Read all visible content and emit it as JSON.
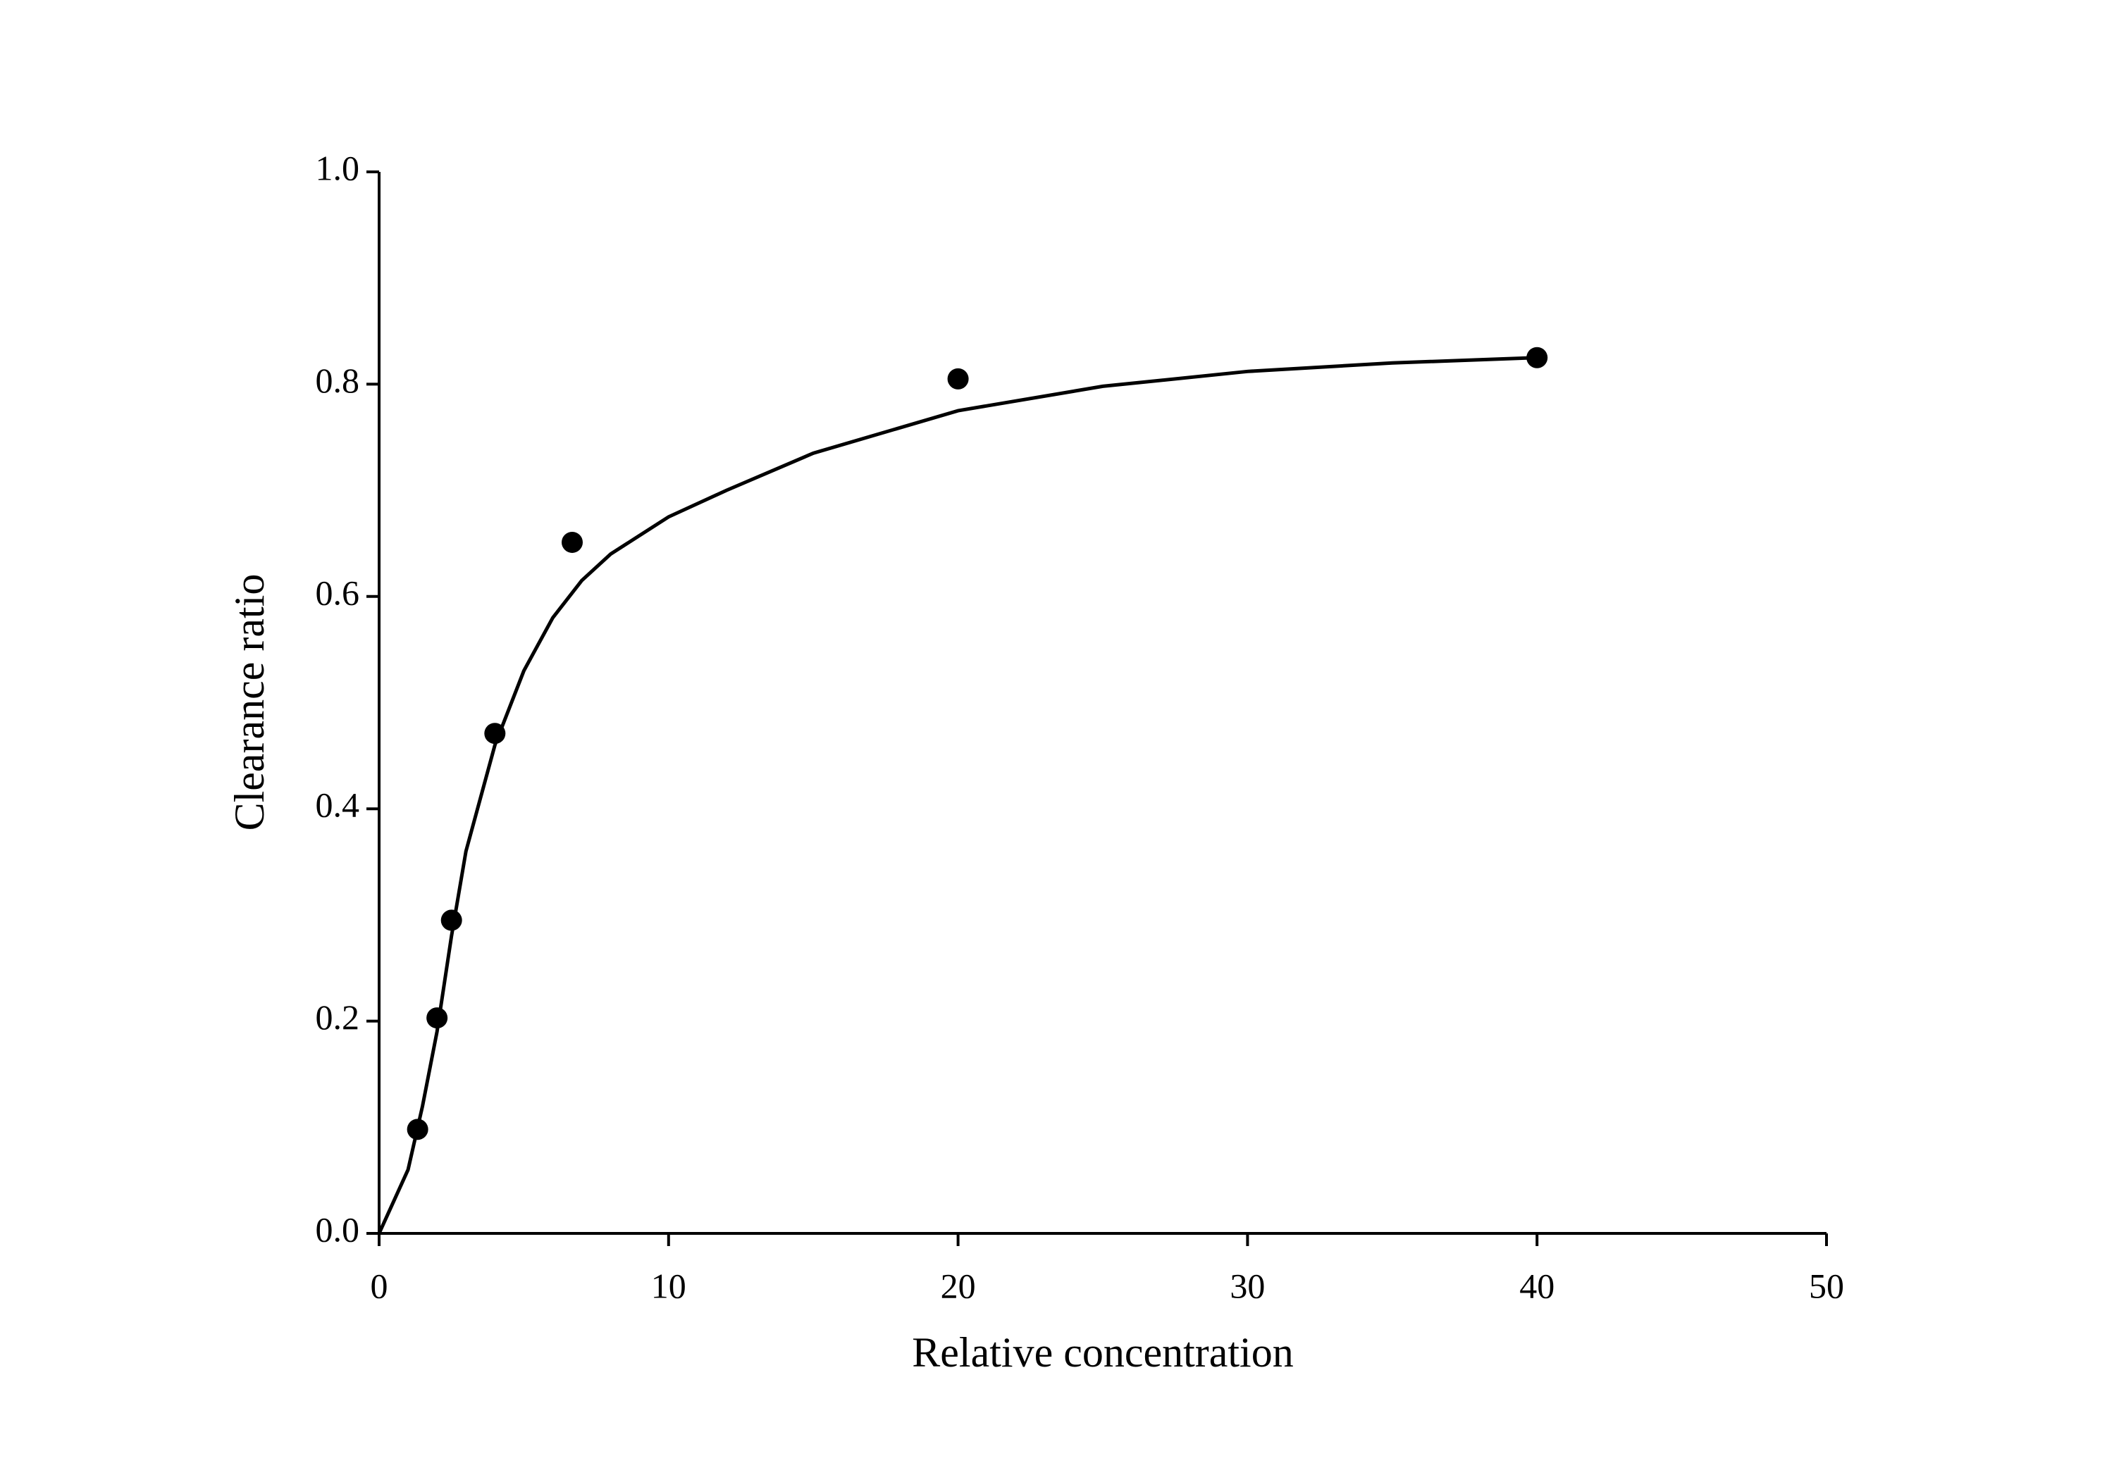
{
  "chart_data": {
    "type": "scatter",
    "xlabel": "Relative concentration",
    "ylabel": "Clearance ratio",
    "xlim": [
      0,
      50
    ],
    "xticks": [
      0,
      10,
      20,
      30,
      40,
      50
    ],
    "ylim": [
      0,
      1
    ],
    "yticks": [
      {
        "value": 0,
        "label": "0.0"
      },
      {
        "value": 0.2,
        "label": "0.2"
      },
      {
        "value": 0.4,
        "label": "0.4"
      },
      {
        "value": 0.6,
        "label": "0.6"
      },
      {
        "value": 0.8,
        "label": "0.8"
      },
      {
        "value": 1,
        "label": "1.0"
      }
    ],
    "grid": false,
    "series": [
      {
        "type": "scatter",
        "color": "#000000",
        "x": [
          1.33,
          2,
          2.5,
          4,
          6.67,
          20,
          40
        ],
        "values": [
          0.098,
          0.203,
          0.295,
          0.471,
          0.651,
          0.805,
          0.825
        ]
      },
      {
        "type": "line",
        "color": "#000000",
        "x": [
          0,
          1,
          1.5,
          2,
          2.5,
          3,
          4,
          5,
          6,
          7,
          8,
          10,
          12,
          15,
          20,
          25,
          30,
          35,
          40
        ],
        "values": [
          0,
          0.06,
          0.12,
          0.19,
          0.28,
          0.36,
          0.46,
          0.53,
          0.58,
          0.615,
          0.64,
          0.675,
          0.7,
          0.735,
          0.775,
          0.798,
          0.812,
          0.82,
          0.825
        ]
      }
    ]
  }
}
